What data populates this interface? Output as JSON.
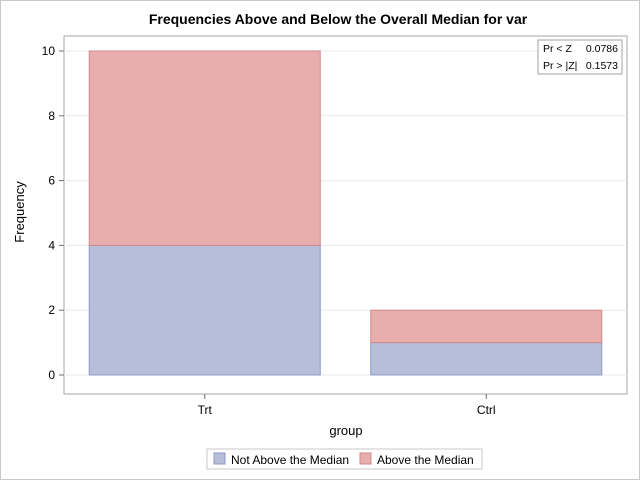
{
  "chart_data": {
    "type": "bar",
    "stacked": true,
    "title": "Frequencies Above and Below the Overall Median for var",
    "xlabel": "group",
    "ylabel": "Frequency",
    "categories": [
      "Trt",
      "Ctrl"
    ],
    "series": [
      {
        "name": "Not Above the Median",
        "values": [
          4,
          1
        ],
        "color": "#b7bed8",
        "stroke": "#8e99c4"
      },
      {
        "name": "Above the Median",
        "values": [
          6,
          1
        ],
        "color": "#e8aeae",
        "stroke": "#cf8a8a"
      }
    ],
    "ylim": [
      0,
      10
    ],
    "yticks": [
      0,
      2,
      4,
      6,
      8,
      10
    ],
    "grid": true,
    "legend_position": "bottom",
    "inset_stats": [
      {
        "label": "Pr < Z",
        "value": "0.0786"
      },
      {
        "label": "Pr > |Z|",
        "value": "0.1573"
      }
    ]
  }
}
